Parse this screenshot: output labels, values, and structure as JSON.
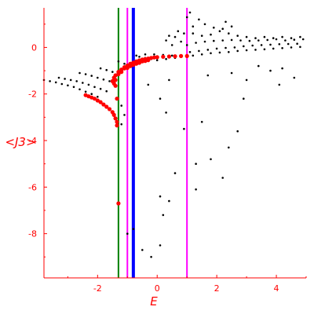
{
  "chart_data": {
    "type": "scatter",
    "xlabel": "E",
    "ylabel": "<J3>",
    "xlim": [
      -3.8,
      5.0
    ],
    "ylim": [
      -9.9,
      1.7
    ],
    "xticks": [
      -2,
      0,
      2,
      4
    ],
    "xtick_labels": [
      "-2",
      "0",
      "2",
      "4"
    ],
    "yticks": [
      0,
      -2,
      -4,
      -6,
      -8
    ],
    "ytick_labels": [
      "0",
      "-2",
      "-4",
      "-6",
      "-8"
    ],
    "grid": false,
    "colors": {
      "axis": "#ff0000",
      "black_points": "#000000",
      "red_points": "#ff0000",
      "line_green": "#008000",
      "line_blue": "#0000ff",
      "line_magenta": "#ff00ff"
    },
    "vertical_lines": [
      {
        "x": -1.3,
        "color": "#008000"
      },
      {
        "x": -1.0,
        "color": "#ff00ff"
      },
      {
        "x": -0.8,
        "color": "#0000ff"
      },
      {
        "x": 1.0,
        "color": "#ff00ff"
      }
    ],
    "series": [
      {
        "color": "#000000",
        "marker_size": 1.3,
        "points": [
          [
            -3.8,
            -1.4
          ],
          [
            -3.6,
            -1.45
          ],
          [
            -3.4,
            -1.5
          ],
          [
            -3.2,
            -1.57
          ],
          [
            -3.0,
            -1.63
          ],
          [
            -2.8,
            -1.7
          ],
          [
            -2.6,
            -1.8
          ],
          [
            -2.4,
            -1.9
          ],
          [
            -2.2,
            -2.0
          ],
          [
            -2.0,
            -2.12
          ],
          [
            -3.3,
            -1.3
          ],
          [
            -3.1,
            -1.35
          ],
          [
            -2.9,
            -1.4
          ],
          [
            -2.7,
            -1.45
          ],
          [
            -2.5,
            -1.52
          ],
          [
            -2.3,
            -1.6
          ],
          [
            -2.1,
            -1.7
          ],
          [
            -1.9,
            -1.78
          ],
          [
            -1.7,
            -1.88
          ],
          [
            -2.6,
            -1.1
          ],
          [
            -2.4,
            -1.15
          ],
          [
            -2.2,
            -1.22
          ],
          [
            -2.0,
            -1.3
          ],
          [
            -1.8,
            -1.38
          ],
          [
            -1.6,
            -1.45
          ],
          [
            -1.9,
            -0.9
          ],
          [
            -1.7,
            -0.97
          ],
          [
            -1.5,
            -1.05
          ],
          [
            -1.3,
            -1.12
          ],
          [
            -1.3,
            -0.6
          ],
          [
            -1.1,
            -0.7
          ],
          [
            -0.9,
            -0.75
          ],
          [
            -1.2,
            -2.5
          ],
          [
            -1.1,
            -2.9
          ],
          [
            -1.2,
            -3.3
          ],
          [
            -0.6,
            -0.4
          ],
          [
            -0.4,
            -0.45
          ],
          [
            -0.2,
            -0.5
          ],
          [
            0.0,
            -0.55
          ],
          [
            0.3,
            -0.5
          ],
          [
            0.6,
            -0.45
          ],
          [
            -0.7,
            -0.35
          ],
          [
            -0.4,
            -0.3
          ],
          [
            -0.1,
            -0.3
          ],
          [
            0.2,
            -0.32
          ],
          [
            0.5,
            -0.35
          ],
          [
            0.8,
            -0.37
          ],
          [
            1.0,
            -0.4
          ],
          [
            1.2,
            -0.35
          ],
          [
            1.5,
            -0.3
          ],
          [
            1.8,
            -0.25
          ],
          [
            2.1,
            -0.22
          ],
          [
            2.4,
            -0.2
          ],
          [
            2.7,
            -0.15
          ],
          [
            3.0,
            -0.12
          ],
          [
            3.3,
            -0.1
          ],
          [
            3.6,
            -0.08
          ],
          [
            3.9,
            -0.05
          ],
          [
            4.2,
            -0.03
          ],
          [
            4.5,
            0.0
          ],
          [
            4.8,
            0.02
          ],
          [
            1.1,
            -0.2
          ],
          [
            1.4,
            -0.15
          ],
          [
            1.7,
            -0.1
          ],
          [
            2.0,
            -0.05
          ],
          [
            2.3,
            -0.02
          ],
          [
            2.6,
            0.0
          ],
          [
            2.9,
            0.05
          ],
          [
            3.2,
            0.08
          ],
          [
            3.5,
            0.1
          ],
          [
            3.8,
            0.12
          ],
          [
            4.1,
            0.14
          ],
          [
            4.4,
            0.15
          ],
          [
            4.7,
            0.16
          ],
          [
            1.0,
            0.1
          ],
          [
            1.3,
            0.2
          ],
          [
            1.6,
            0.25
          ],
          [
            1.9,
            0.28
          ],
          [
            2.2,
            0.3
          ],
          [
            2.5,
            0.32
          ],
          [
            2.8,
            0.3
          ],
          [
            3.1,
            0.28
          ],
          [
            3.4,
            0.3
          ],
          [
            3.7,
            0.32
          ],
          [
            4.0,
            0.35
          ],
          [
            4.3,
            0.3
          ],
          [
            4.6,
            0.33
          ],
          [
            4.9,
            0.35
          ],
          [
            1.2,
            0.6
          ],
          [
            1.5,
            0.5
          ],
          [
            1.8,
            0.55
          ],
          [
            2.1,
            0.7
          ],
          [
            2.4,
            0.6
          ],
          [
            2.7,
            0.5
          ],
          [
            3.0,
            0.45
          ],
          [
            3.3,
            0.4
          ],
          [
            3.6,
            0.45
          ],
          [
            3.9,
            0.4
          ],
          [
            4.2,
            0.45
          ],
          [
            4.5,
            0.4
          ],
          [
            4.8,
            0.45
          ],
          [
            0.3,
            0.3
          ],
          [
            0.6,
            0.45
          ],
          [
            0.9,
            0.6
          ],
          [
            1.2,
            0.9
          ],
          [
            1.4,
            1.2
          ],
          [
            1.6,
            1.0
          ],
          [
            1.9,
            0.85
          ],
          [
            2.2,
            0.8
          ],
          [
            2.5,
            0.9
          ],
          [
            2.3,
            1.1
          ],
          [
            0.5,
            0.1
          ],
          [
            0.8,
            0.25
          ],
          [
            0.4,
            0.5
          ],
          [
            0.7,
            0.7
          ],
          [
            1.0,
            1.3
          ],
          [
            1.1,
            1.5
          ],
          [
            1.7,
            -1.2
          ],
          [
            2.5,
            -1.1
          ],
          [
            3.0,
            -1.4
          ],
          [
            3.4,
            -0.8
          ],
          [
            3.8,
            -1.0
          ],
          [
            4.2,
            -0.9
          ],
          [
            4.6,
            -1.3
          ],
          [
            2.9,
            -2.2
          ],
          [
            4.1,
            -1.6
          ],
          [
            0.4,
            -1.4
          ],
          [
            1.5,
            -3.2
          ],
          [
            1.8,
            -4.8
          ],
          [
            2.2,
            -5.6
          ],
          [
            2.7,
            -3.6
          ],
          [
            2.4,
            -4.3
          ],
          [
            0.9,
            -3.5
          ],
          [
            0.6,
            -5.4
          ],
          [
            0.4,
            -6.6
          ],
          [
            0.2,
            -7.2
          ],
          [
            0.1,
            -8.5
          ],
          [
            -0.2,
            -9.0
          ],
          [
            -0.5,
            -8.7
          ],
          [
            -0.8,
            -7.8
          ],
          [
            -1.0,
            -8.0
          ],
          [
            0.3,
            -2.8
          ],
          [
            0.1,
            -2.2
          ],
          [
            -0.3,
            -1.6
          ],
          [
            1.3,
            -5.0
          ],
          [
            1.3,
            -6.1
          ],
          [
            0.1,
            -6.4
          ]
        ]
      },
      {
        "color": "#ff0000",
        "marker_size": 2.6,
        "points": [
          [
            -2.4,
            -2.05
          ],
          [
            -2.3,
            -2.1
          ],
          [
            -2.2,
            -2.15
          ],
          [
            -2.1,
            -2.2
          ],
          [
            -2.0,
            -2.28
          ],
          [
            -1.9,
            -2.35
          ],
          [
            -1.8,
            -2.45
          ],
          [
            -1.7,
            -2.55
          ],
          [
            -1.6,
            -2.65
          ],
          [
            -1.5,
            -2.78
          ],
          [
            -1.45,
            -2.9
          ],
          [
            -1.4,
            -3.05
          ],
          [
            -1.35,
            -3.2
          ],
          [
            -1.35,
            -3.35
          ],
          [
            -1.5,
            -1.45
          ],
          [
            -1.45,
            -1.3
          ],
          [
            -1.4,
            -1.2
          ],
          [
            -1.3,
            -1.05
          ],
          [
            -1.2,
            -0.95
          ],
          [
            -1.1,
            -0.85
          ],
          [
            -1.0,
            -0.78
          ],
          [
            -0.9,
            -0.7
          ],
          [
            -0.8,
            -0.65
          ],
          [
            -0.7,
            -0.6
          ],
          [
            -0.6,
            -0.56
          ],
          [
            -0.5,
            -0.52
          ],
          [
            -0.4,
            -0.5
          ],
          [
            -0.3,
            -0.48
          ],
          [
            -0.2,
            -0.45
          ],
          [
            -0.1,
            -0.43
          ],
          [
            0.0,
            -0.42
          ],
          [
            0.2,
            -0.4
          ],
          [
            0.4,
            -0.39
          ],
          [
            0.6,
            -0.38
          ],
          [
            0.8,
            -0.37
          ],
          [
            1.0,
            -0.37
          ],
          [
            -1.4,
            -1.4
          ],
          [
            -1.3,
            -1.15
          ],
          [
            -1.2,
            -1.05
          ],
          [
            -1.1,
            -0.9
          ],
          [
            -1.0,
            -0.88
          ],
          [
            -0.9,
            -0.8
          ],
          [
            -0.8,
            -0.75
          ],
          [
            -0.7,
            -0.7
          ],
          [
            -0.6,
            -0.66
          ],
          [
            -0.5,
            -0.6
          ],
          [
            -0.4,
            -0.58
          ],
          [
            -0.3,
            -0.55
          ],
          [
            -1.45,
            -1.55
          ],
          [
            -1.4,
            -1.65
          ],
          [
            -1.35,
            -2.2
          ],
          [
            -1.3,
            -6.7
          ]
        ]
      }
    ]
  }
}
